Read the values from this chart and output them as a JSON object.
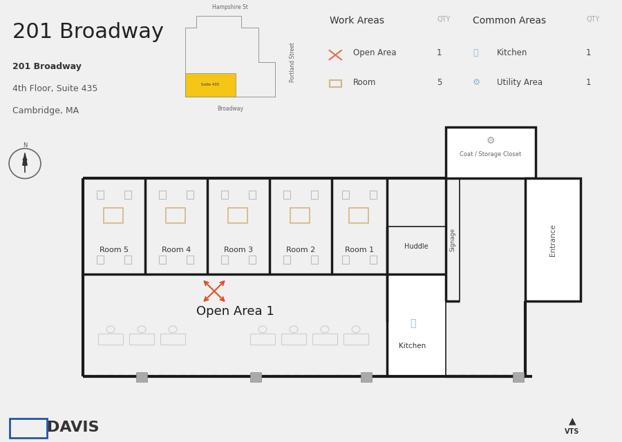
{
  "title": "201 Broadway",
  "subtitle_bold": "201 Broadway",
  "subtitle_line2": "4th Floor, Suite 435",
  "subtitle_line3": "Cambridge, MA",
  "bg_color": "#f0f0f0",
  "header_bg": "#ffffff",
  "floor_plan_bg": "#ffffff",
  "wall_color": "#1a1a1a",
  "room_label_color": "#333333",
  "open_area_color": "#e05020",
  "room_outline_color": "#d4b483",
  "compass_color": "#333333",
  "work_areas_title": "Work Areas",
  "common_areas_title": "Common Areas",
  "qty_label": "QTY",
  "work_items": [
    [
      "Open Area",
      1
    ],
    [
      "Room",
      5
    ]
  ],
  "common_items": [
    [
      "Kitchen",
      1
    ],
    [
      "Utility Area",
      1
    ]
  ],
  "footer_text": "DAVIS",
  "wall_lw": 2.5,
  "thin_lw": 1.2
}
